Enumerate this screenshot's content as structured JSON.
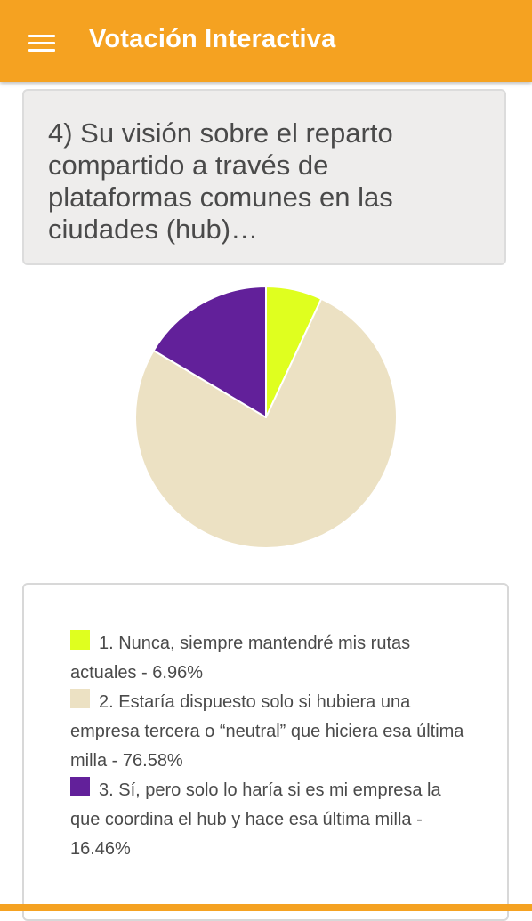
{
  "app": {
    "title": "Votación Interactiva",
    "menu_icon": "hamburger-menu-icon"
  },
  "question": {
    "text": "4) Su visión sobre el reparto compartido a través de plataformas comunes en las ciudades (hub)…"
  },
  "colors": {
    "accent": "#f5a221",
    "slice_1": "#dfff1f",
    "slice_2": "#ece1c3",
    "slice_3": "#62209a"
  },
  "chart_data": {
    "type": "pie",
    "categories": [
      "1. Nunca, siempre mantendré mis rutas actuales",
      "2. Estaría dispuesto solo si hubiera una empresa tercera o “neutral” que hiciera esa última milla",
      "3. Sí, pero solo lo haría si es mi empresa la que coordina el hub y hace esa última milla"
    ],
    "values": [
      6.96,
      76.58,
      16.46
    ],
    "colors": [
      "#dfff1f",
      "#ece1c3",
      "#62209a"
    ],
    "start_angle": "12 o'clock, clockwise"
  },
  "legend": {
    "items": [
      {
        "text": "1. Nunca, siempre mantendré mis rutas actuales - 6.96%"
      },
      {
        "text": "2. Estaría dispuesto solo si hubiera una empresa tercera o “neutral” que hiciera esa última milla - 76.58%"
      },
      {
        "text": "3. Sí, pero solo lo haría si es mi empresa la que coordina el hub y hace esa última milla - 16.46%"
      }
    ]
  }
}
